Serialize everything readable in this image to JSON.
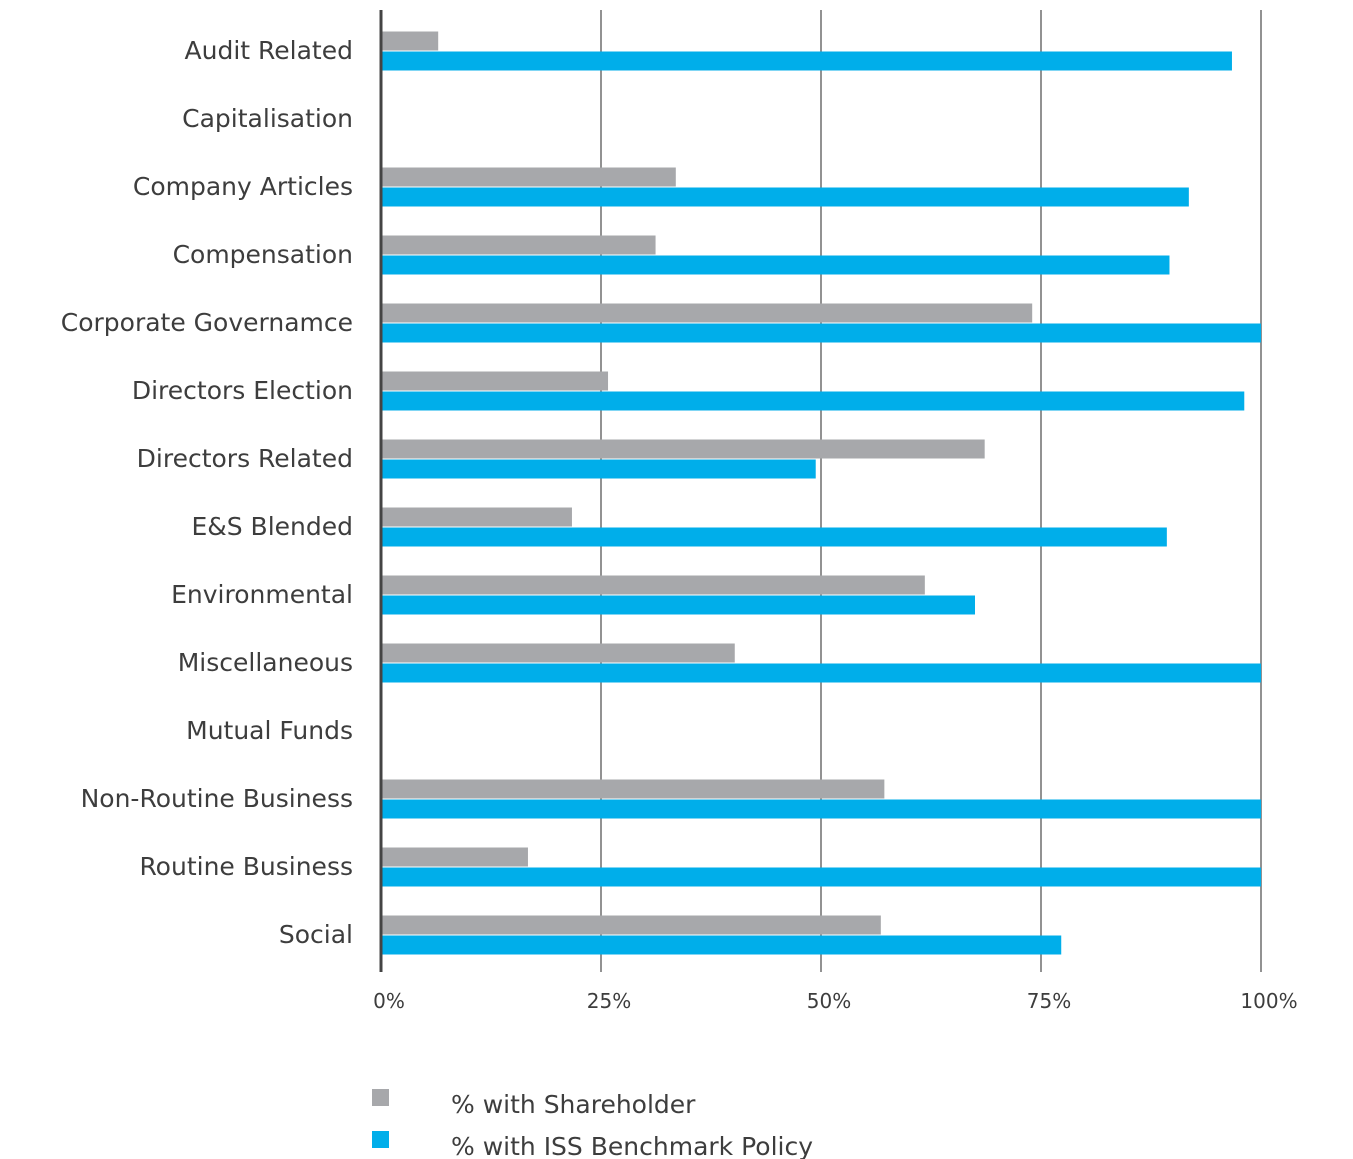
{
  "chart_data": {
    "type": "bar",
    "orientation": "horizontal",
    "title": "",
    "xlabel": "",
    "ylabel": "",
    "xlim": [
      0,
      100
    ],
    "x_ticks": [
      0,
      25,
      50,
      75,
      100
    ],
    "x_tick_labels": [
      "0%",
      "25%",
      "50%",
      "75%",
      "100%"
    ],
    "grid": "vertical",
    "legend_position": "bottom",
    "categories": [
      "Audit Related",
      "Capitalisation",
      "Company Articles",
      "Compensation",
      "Corporate Governamce",
      "Directors Election",
      "Directors Related",
      "E&S Blended",
      "Environmental",
      "Miscellaneous",
      "Mutual Funds",
      "Non-Routine Business",
      "Routine Business",
      "Social"
    ],
    "series": [
      {
        "name": "% with Shareholder",
        "color": "#a7a8ab",
        "values": [
          6.5,
          0,
          33.5,
          31.2,
          74.0,
          25.8,
          68.6,
          21.7,
          61.8,
          40.2,
          0,
          57.2,
          16.7,
          56.8
        ]
      },
      {
        "name": "% with ISS Benchmark Policy",
        "color": "#00aeea",
        "values": [
          96.7,
          0,
          91.8,
          89.6,
          100,
          98.1,
          49.4,
          89.3,
          67.5,
          100,
          0,
          100,
          100,
          77.3
        ]
      }
    ]
  }
}
